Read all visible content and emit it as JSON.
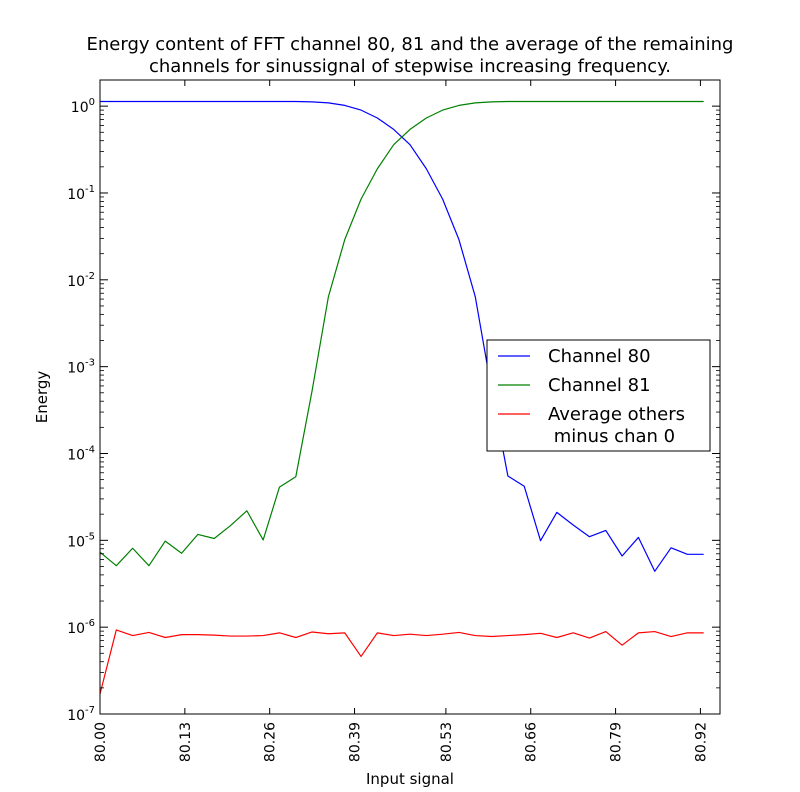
{
  "chart_data": {
    "type": "line",
    "title": "Energy content of FFT channel 80, 81 and the average of the remaining\nchannels for sinussignal of stepwise increasing frequency.",
    "xlabel": "Input signal",
    "ylabel": "Energy",
    "xlim": [
      80.0,
      80.95
    ],
    "ylim": [
      1e-07,
      2
    ],
    "yscale": "log",
    "grid": false,
    "legend_position": "center-right",
    "xticks": [
      80.0,
      80.13,
      80.26,
      80.39,
      80.53,
      80.66,
      80.79,
      80.92
    ],
    "xtick_labels": [
      "80.00",
      "80.13",
      "80.26",
      "80.39",
      "80.53",
      "80.66",
      "80.79",
      "80.92"
    ],
    "yticks": [
      {
        "value": 1e-07,
        "base": "10",
        "exp": "-7"
      },
      {
        "value": 1e-06,
        "base": "10",
        "exp": "-6"
      },
      {
        "value": 1e-05,
        "base": "10",
        "exp": "-5"
      },
      {
        "value": 0.0001,
        "base": "10",
        "exp": "-4"
      },
      {
        "value": 0.001,
        "base": "10",
        "exp": "-3"
      },
      {
        "value": 0.01,
        "base": "10",
        "exp": "-2"
      },
      {
        "value": 0.1,
        "base": "10",
        "exp": "-1"
      },
      {
        "value": 1,
        "base": "10",
        "exp": "0"
      }
    ],
    "x": [
      80.0,
      80.025,
      80.05,
      80.075,
      80.1,
      80.125,
      80.15,
      80.175,
      80.2,
      80.225,
      80.25,
      80.275,
      80.3,
      80.325,
      80.35,
      80.375,
      80.4,
      80.425,
      80.45,
      80.475,
      80.5,
      80.525,
      80.55,
      80.575,
      80.6,
      80.625,
      80.65,
      80.675,
      80.7,
      80.725,
      80.75,
      80.775,
      80.8,
      80.825,
      80.85,
      80.875,
      80.9,
      80.925
    ],
    "series": [
      {
        "name": "Channel 80",
        "color": "#0000ff",
        "values": [
          1.13,
          1.13,
          1.13,
          1.13,
          1.13,
          1.13,
          1.13,
          1.13,
          1.13,
          1.13,
          1.13,
          1.13,
          1.13,
          1.12,
          1.09,
          1.02,
          0.9,
          0.73,
          0.54,
          0.36,
          0.19,
          0.085,
          0.029,
          0.0064,
          0.00054,
          5.5e-05,
          4.2e-05,
          9.9e-06,
          2.1e-05,
          1.5e-05,
          1.1e-05,
          1.3e-05,
          6.6e-06,
          1.08e-05,
          4.4e-06,
          8.2e-06,
          6.9e-06,
          6.9e-06
        ]
      },
      {
        "name": "Channel 81",
        "color": "#008000",
        "values": [
          7.3e-06,
          5.1e-06,
          8.1e-06,
          5.1e-06,
          9.8e-06,
          7.1e-06,
          1.17e-05,
          1.05e-05,
          1.48e-05,
          2.19e-05,
          1.01e-05,
          4.1e-05,
          5.4e-05,
          0.00053,
          0.0064,
          0.029,
          0.085,
          0.19,
          0.36,
          0.54,
          0.73,
          0.9,
          1.02,
          1.09,
          1.12,
          1.13,
          1.13,
          1.13,
          1.13,
          1.13,
          1.13,
          1.13,
          1.13,
          1.13,
          1.13,
          1.13,
          1.13,
          1.13
        ]
      },
      {
        "name": "Average others\n minus chan 0",
        "color": "#ff0000",
        "values": [
          1.7e-07,
          9.3e-07,
          8e-07,
          8.7e-07,
          7.6e-07,
          8.2e-07,
          8.2e-07,
          8.1e-07,
          7.9e-07,
          7.9e-07,
          8e-07,
          8.6e-07,
          7.6e-07,
          8.8e-07,
          8.4e-07,
          8.6e-07,
          4.6e-07,
          8.6e-07,
          8e-07,
          8.3e-07,
          8e-07,
          8.3e-07,
          8.7e-07,
          8e-07,
          7.8e-07,
          8e-07,
          8.2e-07,
          8.5e-07,
          7.6e-07,
          8.6e-07,
          7.5e-07,
          8.9e-07,
          6.2e-07,
          8.6e-07,
          8.9e-07,
          7.8e-07,
          8.6e-07,
          8.6e-07
        ]
      }
    ]
  }
}
